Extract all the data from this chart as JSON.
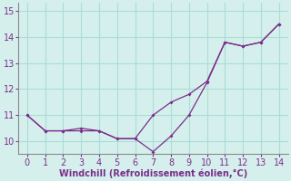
{
  "line1_x": [
    0,
    1,
    2,
    3,
    4,
    5,
    6,
    7,
    8,
    9,
    10,
    11,
    12,
    13,
    14
  ],
  "line1_y": [
    11.0,
    10.4,
    10.4,
    10.5,
    10.4,
    10.1,
    10.1,
    11.0,
    11.5,
    11.8,
    12.3,
    13.8,
    13.65,
    13.8,
    14.5
  ],
  "line2_x": [
    0,
    1,
    2,
    3,
    4,
    5,
    6,
    7,
    8,
    9,
    10,
    11,
    12,
    13,
    14
  ],
  "line2_y": [
    11.0,
    10.4,
    10.4,
    10.4,
    10.4,
    10.1,
    10.1,
    9.6,
    10.2,
    11.0,
    12.25,
    13.8,
    13.65,
    13.8,
    14.5
  ],
  "line_color": "#7b2d8b",
  "bg_color": "#d5f0ec",
  "grid_color": "#aaddd7",
  "xlabel": "Windchill (Refroidissement éolien,°C)",
  "xlim": [
    -0.5,
    14.5
  ],
  "ylim": [
    9.5,
    15.3
  ],
  "xticks": [
    0,
    1,
    2,
    3,
    4,
    5,
    6,
    7,
    8,
    9,
    10,
    11,
    12,
    13,
    14
  ],
  "yticks": [
    10,
    11,
    12,
    13,
    14,
    15
  ],
  "tick_color": "#7b2d8b",
  "label_color": "#7b2d8b",
  "font_size": 7.0
}
